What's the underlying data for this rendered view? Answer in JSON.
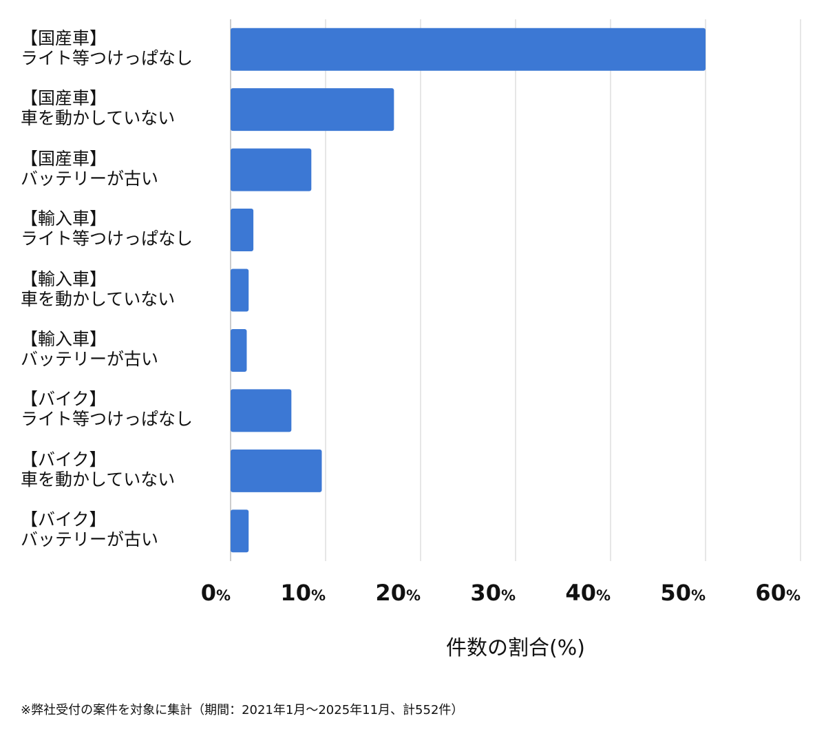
{
  "chart_data": {
    "type": "bar",
    "orientation": "horizontal",
    "categories": [
      [
        "【国産車】",
        "ライト等つけっぱなし"
      ],
      [
        "【国産車】",
        "車を動かしていない"
      ],
      [
        "【国産車】",
        "バッテリーが古い"
      ],
      [
        "【輸入車】",
        "ライト等つけっぱなし"
      ],
      [
        "【輸入車】",
        "車を動かしていない"
      ],
      [
        "【輸入車】",
        "バッテリーが古い"
      ],
      [
        "【バイク】",
        "ライト等つけっぱなし"
      ],
      [
        "【バイク】",
        "車を動かしていない"
      ],
      [
        "【バイク】",
        "バッテリーが古い"
      ]
    ],
    "values": [
      50.0,
      17.2,
      8.5,
      2.4,
      1.9,
      1.7,
      6.4,
      9.6,
      1.9
    ],
    "xlim": [
      0,
      60
    ],
    "xticks": [
      {
        "num": "0",
        "unit": "%"
      },
      {
        "num": "10",
        "unit": "%"
      },
      {
        "num": "20",
        "unit": "%"
      },
      {
        "num": "30",
        "unit": "%"
      },
      {
        "num": "40",
        "unit": "%"
      },
      {
        "num": "50",
        "unit": "%"
      },
      {
        "num": "60",
        "unit": "%"
      }
    ],
    "xlabel": "件数の割合(%)",
    "grid": "vertical",
    "bar_color": "#3c78d4",
    "grid_color": "#dddddd"
  },
  "footnote": "※弊社受付の案件を対象に集計（期間：2021年1月〜2025年11月、計552件）"
}
